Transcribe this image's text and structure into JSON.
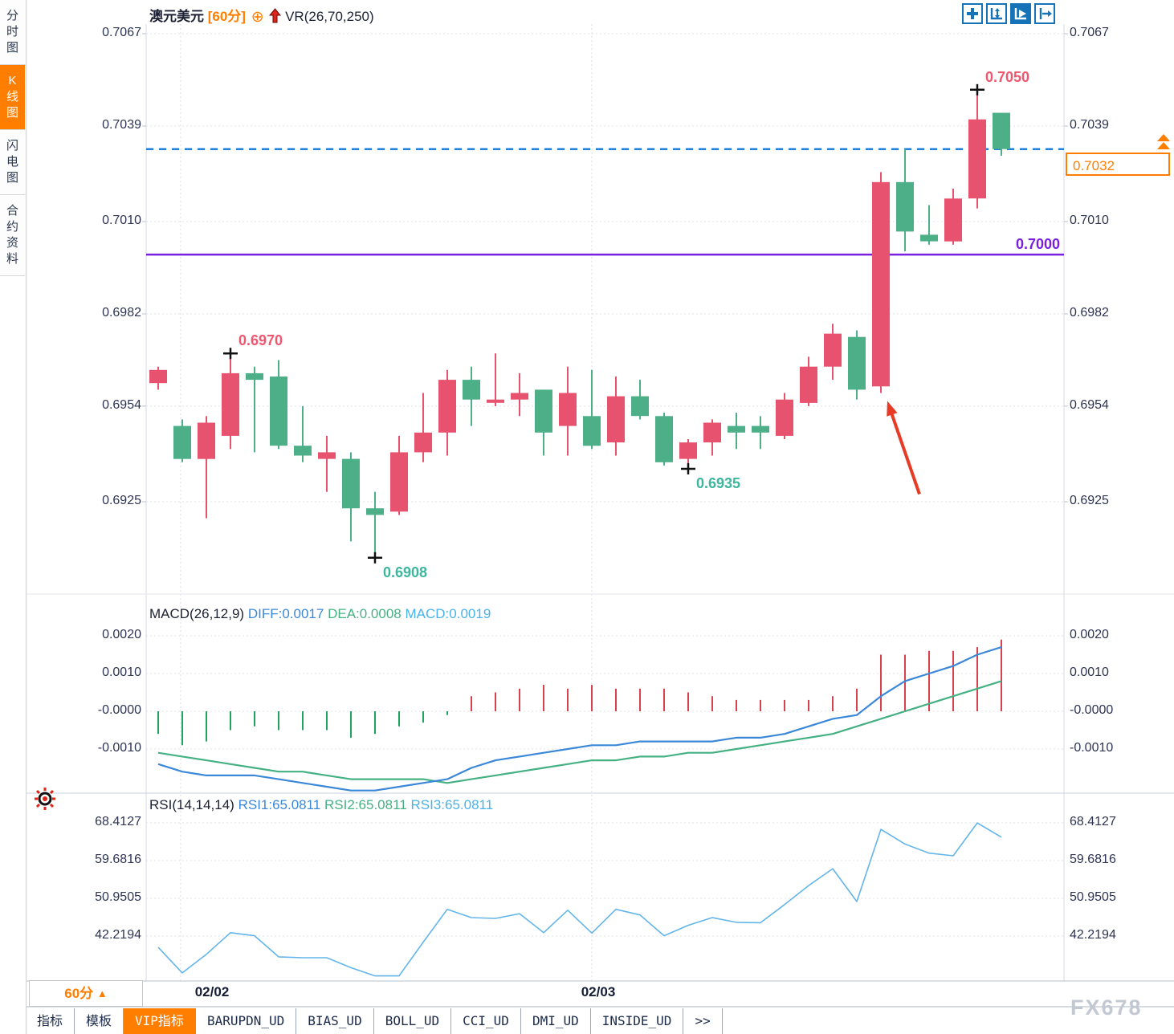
{
  "app": {
    "watermark": "FX678",
    "colors": {
      "up_candle": "#e7536e",
      "down_candle": "#4caf88",
      "hist_pos": "#d9414f",
      "hist_neg": "#21a35f",
      "diff_line": "#3b87d8",
      "dea_line": "#45b183",
      "rsi_line": "#63b5ea",
      "accent_orange": "#ff7e00",
      "purple_line": "#7a1ee0",
      "current_price_line": "#1f7fdd",
      "swing_high_label": "#f1566f",
      "swing_low_label": "#3cb79e",
      "annotation_arrow": "#e73b25",
      "marker_cross": "#111111"
    }
  },
  "sidebar": {
    "items": [
      {
        "label": "分时图",
        "active": false
      },
      {
        "label": "K线图",
        "active": true
      },
      {
        "label": "闪电图",
        "active": false
      },
      {
        "label": "合约资料",
        "active": false
      }
    ]
  },
  "header": {
    "symbol": "澳元美元",
    "period": "[60分]",
    "circle_plus_icon": "⊕",
    "indicator": "VR(26,70,250)",
    "toolbar_icons": [
      "crosshair-icon",
      "axis-range-icon",
      "auto-fit-icon",
      "go-to-latest-icon"
    ]
  },
  "main_chart": {
    "y_axis_labels": [
      "0.7067",
      "0.7039",
      "0.7010",
      "0.6982",
      "0.6954",
      "0.6925"
    ],
    "x_axis_labels": [
      "02/02",
      "02/03"
    ],
    "current_price": "0.7032",
    "horizontal_line": {
      "value": "0.7000"
    },
    "annotations": [
      {
        "text": "0.6970",
        "type": "swing-high",
        "candle": 4
      },
      {
        "text": "0.6908",
        "type": "swing-low",
        "candle": 10
      },
      {
        "text": "0.6935",
        "type": "swing-low",
        "candle": 23
      },
      {
        "text": "0.7050",
        "type": "swing-high",
        "candle": 35
      },
      {
        "type": "arrow",
        "points_at_candle": 31
      }
    ]
  },
  "macd_panel": {
    "title": "MACD(26,12,9)",
    "diff_label": "DIFF:0.0017",
    "dea_label": "DEA:0.0008",
    "macd_label": "MACD:0.0019",
    "y_axis_labels": [
      "0.0020",
      "0.0010",
      "-0.0000",
      "-0.0010"
    ]
  },
  "rsi_panel": {
    "title": "RSI(14,14,14)",
    "rsi1_label": "RSI1:65.0811",
    "rsi2_label": "RSI2:65.0811",
    "rsi3_label": "RSI3:65.0811",
    "y_axis_labels": [
      "68.4127",
      "59.6816",
      "50.9505",
      "42.2194"
    ]
  },
  "footer": {
    "period_selector": "60分",
    "tabs": [
      {
        "label": "指标",
        "active": false
      },
      {
        "label": "模板",
        "active": false
      },
      {
        "label": "VIP指标",
        "active": true
      },
      {
        "label": "BARUPDN_UD",
        "active": false
      },
      {
        "label": "BIAS_UD",
        "active": false
      },
      {
        "label": "BOLL_UD",
        "active": false
      },
      {
        "label": "CCI_UD",
        "active": false
      },
      {
        "label": "DMI_UD",
        "active": false
      },
      {
        "label": "INSIDE_UD",
        "active": false
      },
      {
        "label": ">>",
        "active": false
      }
    ]
  },
  "chart_data": [
    {
      "type": "candlestick",
      "title": "澳元美元 60分 K线图",
      "ohlc_order": [
        "open",
        "high",
        "low",
        "close"
      ],
      "ylim": [
        0.6908,
        0.7067
      ],
      "sessions": [
        {
          "label": "02/02",
          "starts_at_candle": 2
        },
        {
          "label": "02/03",
          "starts_at_candle": 19
        }
      ],
      "candles": [
        [
          0.6961,
          0.6966,
          0.6959,
          0.6965
        ],
        [
          0.6948,
          0.695,
          0.6937,
          0.6938
        ],
        [
          0.6938,
          0.6951,
          0.692,
          0.6949
        ],
        [
          0.6945,
          0.697,
          0.6941,
          0.6964
        ],
        [
          0.6964,
          0.6966,
          0.694,
          0.6962
        ],
        [
          0.6963,
          0.6968,
          0.6941,
          0.6942
        ],
        [
          0.6942,
          0.6954,
          0.6937,
          0.6939
        ],
        [
          0.6938,
          0.6945,
          0.6928,
          0.694
        ],
        [
          0.6938,
          0.694,
          0.6913,
          0.6923
        ],
        [
          0.6923,
          0.6928,
          0.6908,
          0.6921
        ],
        [
          0.6922,
          0.6945,
          0.6921,
          0.694
        ],
        [
          0.694,
          0.6958,
          0.6937,
          0.6946
        ],
        [
          0.6946,
          0.6965,
          0.6939,
          0.6962
        ],
        [
          0.6962,
          0.6966,
          0.6948,
          0.6956
        ],
        [
          0.6955,
          0.697,
          0.6954,
          0.6956
        ],
        [
          0.6956,
          0.6964,
          0.6951,
          0.6958
        ],
        [
          0.6959,
          0.6959,
          0.6939,
          0.6946
        ],
        [
          0.6948,
          0.6966,
          0.6939,
          0.6958
        ],
        [
          0.6951,
          0.6965,
          0.6941,
          0.6942
        ],
        [
          0.6943,
          0.6963,
          0.6939,
          0.6957
        ],
        [
          0.6957,
          0.6962,
          0.695,
          0.6951
        ],
        [
          0.6951,
          0.6952,
          0.6936,
          0.6937
        ],
        [
          0.6938,
          0.6944,
          0.6935,
          0.6943
        ],
        [
          0.6943,
          0.695,
          0.6939,
          0.6949
        ],
        [
          0.6948,
          0.6952,
          0.6941,
          0.6946
        ],
        [
          0.6948,
          0.6951,
          0.6941,
          0.6946
        ],
        [
          0.6945,
          0.6958,
          0.6944,
          0.6956
        ],
        [
          0.6955,
          0.6969,
          0.6954,
          0.6966
        ],
        [
          0.6966,
          0.6979,
          0.6962,
          0.6976
        ],
        [
          0.6975,
          0.6977,
          0.6956,
          0.6959
        ],
        [
          0.696,
          0.7025,
          0.6958,
          0.7022
        ],
        [
          0.7022,
          0.7032,
          0.7001,
          0.7007
        ],
        [
          0.7006,
          0.7015,
          0.7003,
          0.7004
        ],
        [
          0.7004,
          0.702,
          0.7003,
          0.7017
        ],
        [
          0.7017,
          0.705,
          0.7014,
          0.7041
        ],
        [
          0.7043,
          0.7043,
          0.703,
          0.7032
        ]
      ],
      "price_lines": [
        {
          "value": 0.7,
          "style": "solid-purple"
        },
        {
          "value": 0.7032,
          "style": "dashed-blue-current-price"
        }
      ]
    },
    {
      "type": "bar",
      "title": "MACD(26,12,9)",
      "ylim": [
        -0.0023,
        0.0021
      ],
      "series": [
        {
          "name": "MACD histogram",
          "values": [
            -0.0006,
            -0.0009,
            -0.0008,
            -0.0005,
            -0.0004,
            -0.0005,
            -0.0005,
            -0.0005,
            -0.0007,
            -0.0006,
            -0.0004,
            -0.0003,
            -0.0001,
            0.0004,
            0.0005,
            0.0006,
            0.0007,
            0.0006,
            0.0007,
            0.0006,
            0.0006,
            0.0006,
            0.0005,
            0.0004,
            0.0003,
            0.0003,
            0.0003,
            0.0003,
            0.0004,
            0.0006,
            0.0015,
            0.0015,
            0.0016,
            0.0016,
            0.0017,
            0.0019
          ]
        },
        {
          "name": "DIFF",
          "values": [
            -0.0014,
            -0.0016,
            -0.0017,
            -0.0017,
            -0.0017,
            -0.0018,
            -0.0019,
            -0.002,
            -0.0021,
            -0.0021,
            -0.002,
            -0.0019,
            -0.0018,
            -0.0015,
            -0.0013,
            -0.0012,
            -0.0011,
            -0.001,
            -0.0009,
            -0.0009,
            -0.0008,
            -0.0008,
            -0.0008,
            -0.0008,
            -0.0007,
            -0.0007,
            -0.0006,
            -0.0004,
            -0.0002,
            -0.0001,
            0.0004,
            0.0008,
            0.001,
            0.0012,
            0.0015,
            0.0017
          ]
        },
        {
          "name": "DEA",
          "values": [
            -0.0011,
            -0.0012,
            -0.0013,
            -0.0014,
            -0.0015,
            -0.0016,
            -0.0016,
            -0.0017,
            -0.0018,
            -0.0018,
            -0.0018,
            -0.0018,
            -0.0019,
            -0.0018,
            -0.0017,
            -0.0016,
            -0.0015,
            -0.0014,
            -0.0013,
            -0.0013,
            -0.0012,
            -0.0012,
            -0.0011,
            -0.0011,
            -0.001,
            -0.0009,
            -0.0008,
            -0.0007,
            -0.0006,
            -0.0004,
            -0.0002,
            0.0,
            0.0002,
            0.0004,
            0.0006,
            0.0008
          ]
        }
      ]
    },
    {
      "type": "line",
      "title": "RSI(14,14,14)",
      "ylim": [
        30,
        72
      ],
      "series": [
        {
          "name": "RSI1",
          "values": [
            39.6,
            33.7,
            38.0,
            43.0,
            42.3,
            37.4,
            37.2,
            37.2,
            34.9,
            33.0,
            33.0,
            40.8,
            48.4,
            46.5,
            46.3,
            47.4,
            43.0,
            48.2,
            42.9,
            48.4,
            47.1,
            42.3,
            44.7,
            46.5,
            45.4,
            45.3,
            49.5,
            53.9,
            57.8,
            50.2,
            66.9,
            63.5,
            61.4,
            60.8,
            68.4,
            65.1
          ]
        }
      ]
    }
  ]
}
